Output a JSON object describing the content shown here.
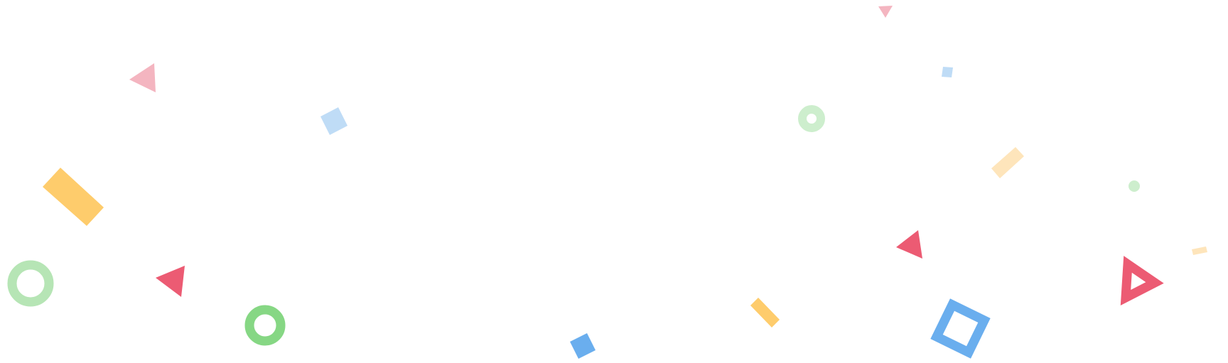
{
  "colors": {
    "red": "#ec5b73",
    "pink": "#f4b5c0",
    "blue": "#6aaeee",
    "light_blue": "#bfdcf6",
    "yellow": "#fecc6c",
    "light_yellow": "#fee5bb",
    "green": "#86d784",
    "light_green": "#b6e5b5",
    "pale_green": "#cdeecd"
  },
  "shapes": [
    {
      "name": "pink-triangle-top-left",
      "kind": "triangle",
      "color": "pink"
    },
    {
      "name": "yellow-rectangle-left",
      "kind": "rectangle",
      "color": "yellow"
    },
    {
      "name": "light-green-ring-left",
      "kind": "ring",
      "color": "light_green"
    },
    {
      "name": "red-triangle-left",
      "kind": "triangle",
      "color": "red"
    },
    {
      "name": "green-ring-bottom-left",
      "kind": "ring",
      "color": "green"
    },
    {
      "name": "light-blue-square-top",
      "kind": "square",
      "color": "light_blue"
    },
    {
      "name": "blue-square-bottom",
      "kind": "square",
      "color": "blue"
    },
    {
      "name": "pale-green-ring-center",
      "kind": "ring",
      "color": "pale_green"
    },
    {
      "name": "yellow-rectangle-bottom-center",
      "kind": "rectangle",
      "color": "yellow"
    },
    {
      "name": "pink-triangle-top",
      "kind": "triangle",
      "color": "pink"
    },
    {
      "name": "light-blue-square-small",
      "kind": "square",
      "color": "light_blue"
    },
    {
      "name": "light-yellow-rectangle-right",
      "kind": "rectangle",
      "color": "light_yellow"
    },
    {
      "name": "red-triangle-right",
      "kind": "triangle",
      "color": "red"
    },
    {
      "name": "blue-square-outline-right",
      "kind": "square-outline",
      "color": "blue"
    },
    {
      "name": "pale-green-dot-right",
      "kind": "dot",
      "color": "pale_green"
    },
    {
      "name": "red-triangle-outline-right",
      "kind": "triangle-outline",
      "color": "red"
    },
    {
      "name": "light-yellow-rectangle-far-right",
      "kind": "rectangle",
      "color": "light_yellow"
    }
  ]
}
